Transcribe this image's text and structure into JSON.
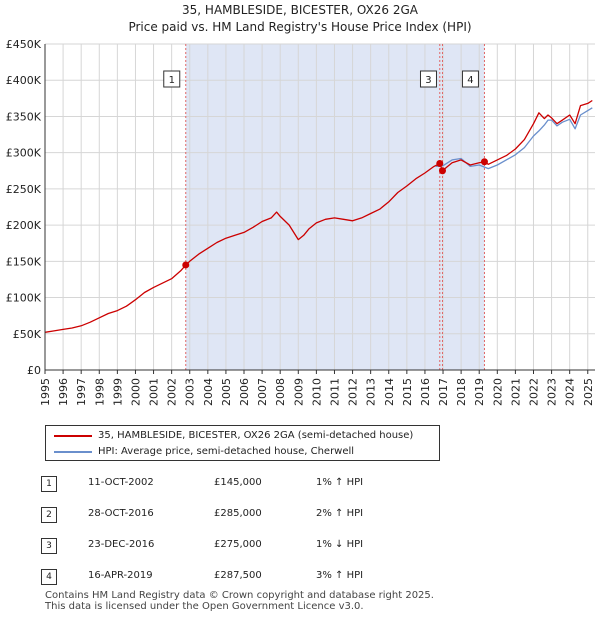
{
  "title_line1": "35, HAMBLESIDE, BICESTER, OX26 2GA",
  "title_line2": "Price paid vs. HM Land Registry's House Price Index (HPI)",
  "chart_data": {
    "type": "line",
    "title": "35, HAMBLESIDE, BICESTER, OX26 2GA — Price paid vs. HM Land Registry's House Price Index (HPI)",
    "xlabel": "",
    "ylabel": "",
    "xlim": [
      1995,
      2025.4
    ],
    "ylim": [
      0,
      450000
    ],
    "x_ticks": [
      1995,
      1996,
      1997,
      1998,
      1999,
      2000,
      2001,
      2002,
      2003,
      2004,
      2005,
      2006,
      2007,
      2008,
      2009,
      2010,
      2011,
      2012,
      2013,
      2014,
      2015,
      2016,
      2017,
      2018,
      2019,
      2020,
      2021,
      2022,
      2023,
      2024,
      2025
    ],
    "x_tick_labels": [
      "1995",
      "1996",
      "1997",
      "1998",
      "1999",
      "2000",
      "2001",
      "2002",
      "2003",
      "2004",
      "2005",
      "2006",
      "2007",
      "2008",
      "2009",
      "2010",
      "2011",
      "2012",
      "2013",
      "2014",
      "2015",
      "2016",
      "2017",
      "2018",
      "2019",
      "2020",
      "2021",
      "2022",
      "2023",
      "2024",
      "2025"
    ],
    "y_ticks": [
      0,
      50000,
      100000,
      150000,
      200000,
      250000,
      300000,
      350000,
      400000,
      450000
    ],
    "y_tick_labels": [
      "£0",
      "£50K",
      "£100K",
      "£150K",
      "£200K",
      "£250K",
      "£300K",
      "£350K",
      "£400K",
      "£450K"
    ],
    "grid": true,
    "shaded_region": {
      "from": 2002.78,
      "to": 2019.29,
      "color": "#dfe6f5"
    },
    "series": [
      {
        "name": "35, HAMBLESIDE, BICESTER, OX26 2GA (semi-detached house)",
        "color": "#cc0000",
        "x": [
          1995.0,
          1995.5,
          1996.0,
          1996.5,
          1997.0,
          1997.5,
          1998.0,
          1998.5,
          1999.0,
          1999.5,
          2000.0,
          2000.5,
          2001.0,
          2001.5,
          2002.0,
          2002.5,
          2002.78,
          2003.0,
          2003.5,
          2004.0,
          2004.5,
          2005.0,
          2005.5,
          2006.0,
          2006.5,
          2007.0,
          2007.5,
          2007.8,
          2008.0,
          2008.5,
          2009.0,
          2009.3,
          2009.6,
          2010.0,
          2010.5,
          2011.0,
          2011.5,
          2012.0,
          2012.5,
          2013.0,
          2013.5,
          2014.0,
          2014.5,
          2015.0,
          2015.5,
          2016.0,
          2016.5,
          2016.82,
          2016.97,
          2017.2,
          2017.5,
          2018.0,
          2018.5,
          2019.0,
          2019.29,
          2019.5,
          2020.0,
          2020.5,
          2021.0,
          2021.5,
          2022.0,
          2022.3,
          2022.6,
          2022.8,
          2023.0,
          2023.3,
          2023.6,
          2024.0,
          2024.3,
          2024.6,
          2025.0,
          2025.25
        ],
        "y": [
          52000,
          54000,
          56000,
          58000,
          61000,
          66000,
          72000,
          78000,
          82000,
          88000,
          97000,
          107000,
          114000,
          120000,
          126000,
          137000,
          145000,
          150000,
          160000,
          168000,
          176000,
          182000,
          186000,
          190000,
          197000,
          205000,
          210000,
          218000,
          212000,
          200000,
          180000,
          186000,
          195000,
          203000,
          208000,
          210000,
          208000,
          206000,
          210000,
          216000,
          222000,
          232000,
          245000,
          254000,
          264000,
          272000,
          281000,
          285000,
          275000,
          280000,
          286000,
          290000,
          283000,
          286000,
          287500,
          284000,
          290000,
          296000,
          305000,
          318000,
          340000,
          355000,
          347000,
          352000,
          348000,
          340000,
          345000,
          352000,
          340000,
          365000,
          368000,
          372000
        ]
      },
      {
        "name": "HPI: Average price, semi-detached house, Cherwell",
        "color": "#6a8fcc",
        "x": [
          2016.6,
          2017.0,
          2017.5,
          2018.0,
          2018.5,
          2019.0,
          2019.5,
          2020.0,
          2020.5,
          2021.0,
          2021.5,
          2022.0,
          2022.3,
          2022.6,
          2022.8,
          2023.0,
          2023.3,
          2023.6,
          2024.0,
          2024.3,
          2024.6,
          2025.0,
          2025.25
        ],
        "y": [
          281000,
          282000,
          290000,
          292000,
          281000,
          283000,
          278000,
          283000,
          290000,
          297000,
          307000,
          323000,
          330000,
          338000,
          345000,
          345000,
          337000,
          342000,
          346000,
          333000,
          352000,
          358000,
          362000
        ]
      }
    ],
    "sale_markers": [
      {
        "label": "1",
        "x": 2002.78,
        "y": 145000,
        "date": "11-OCT-2002",
        "price": "£145,000",
        "hpi": "1% ↑ HPI"
      },
      {
        "label": "2",
        "x": 2016.82,
        "y": 285000,
        "date": "28-OCT-2016",
        "price": "£285,000",
        "hpi": "2% ↑ HPI"
      },
      {
        "label": "3",
        "x": 2016.97,
        "y": 275000,
        "date": "23-DEC-2016",
        "price": "£275,000",
        "hpi": "1% ↓ HPI"
      },
      {
        "label": "4",
        "x": 2019.29,
        "y": 287500,
        "date": "16-APR-2019",
        "price": "£287,500",
        "hpi": "3% ↑ HPI"
      }
    ],
    "box_labels_shown": [
      "1",
      "3",
      "4"
    ],
    "legend": [
      "35, HAMBLESIDE, BICESTER, OX26 2GA (semi-detached house)",
      "HPI: Average price, semi-detached house, Cherwell"
    ]
  },
  "sales": [
    {
      "num": "1",
      "date": "11-OCT-2002",
      "price": "£145,000",
      "hpi": "1% ↑ HPI"
    },
    {
      "num": "2",
      "date": "28-OCT-2016",
      "price": "£285,000",
      "hpi": "2% ↑ HPI"
    },
    {
      "num": "3",
      "date": "23-DEC-2016",
      "price": "£275,000",
      "hpi": "1% ↓ HPI"
    },
    {
      "num": "4",
      "date": "16-APR-2019",
      "price": "£287,500",
      "hpi": "3% ↑ HPI"
    }
  ],
  "footer_line1": "Contains HM Land Registry data © Crown copyright and database right 2025.",
  "footer_line2": "This data is licensed under the Open Government Licence v3.0."
}
